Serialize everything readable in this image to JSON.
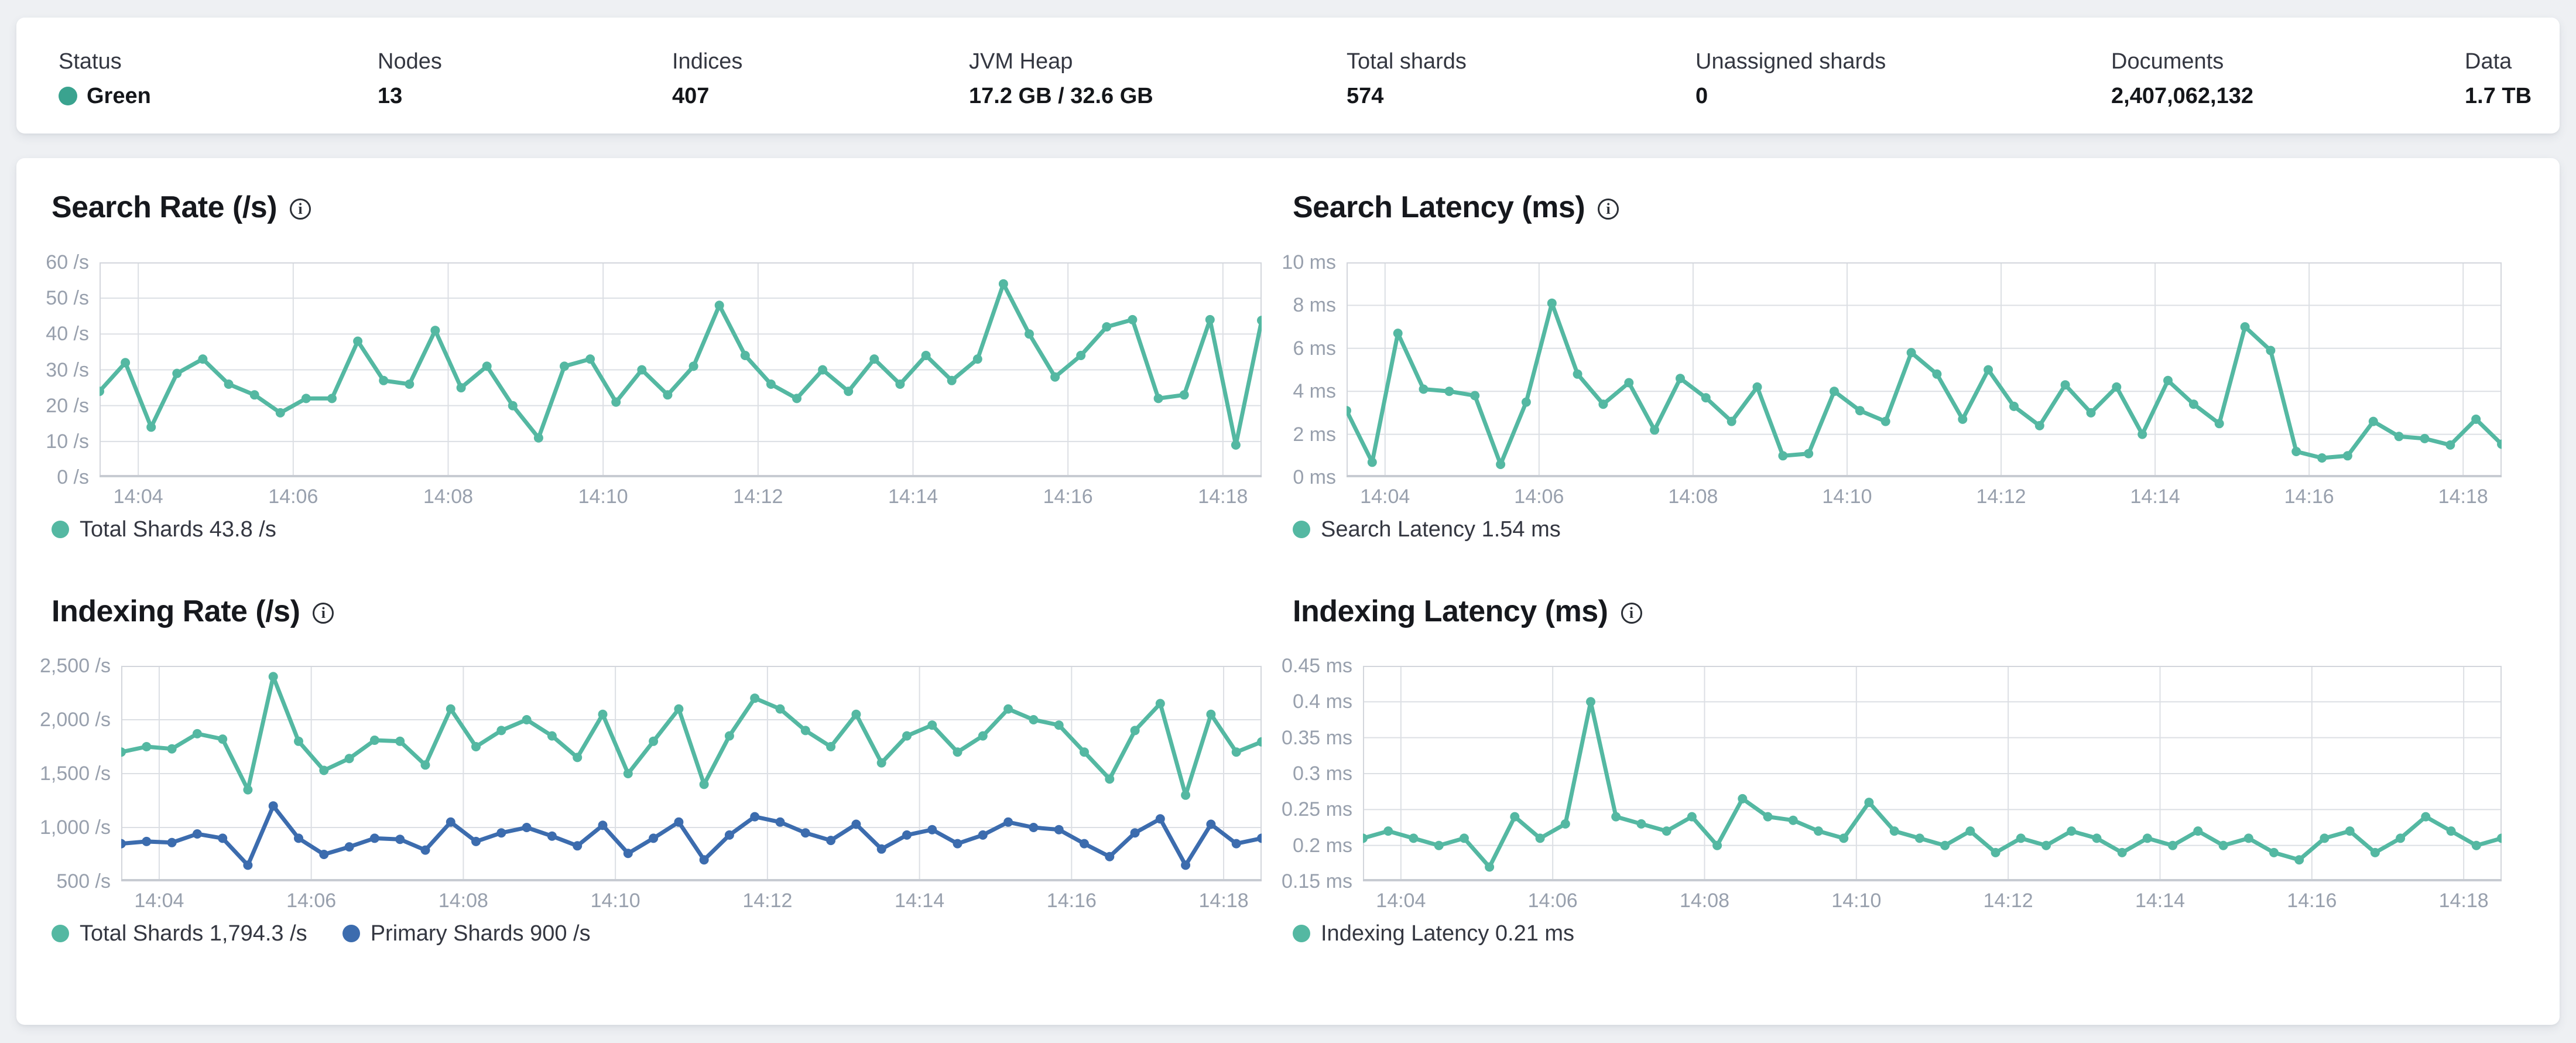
{
  "colors": {
    "status_green": "#3aa38f",
    "series_teal": "#54b8a2",
    "series_blue": "#3c6cae",
    "grid": "#dcdfe4",
    "plot_border": "#d3d6dc",
    "axis_line": "#c7cbd2"
  },
  "status_bar": {
    "stats": [
      {
        "label": "Status",
        "value": "Green",
        "dot": "#3aa38f"
      },
      {
        "label": "Nodes",
        "value": "13"
      },
      {
        "label": "Indices",
        "value": "407"
      },
      {
        "label": "JVM Heap",
        "value": "17.2 GB / 32.6 GB"
      },
      {
        "label": "Total shards",
        "value": "574"
      },
      {
        "label": "Unassigned shards",
        "value": "0"
      },
      {
        "label": "Documents",
        "value": "2,407,062,132"
      },
      {
        "label": "Data",
        "value": "1.7 TB"
      }
    ]
  },
  "chart_data": [
    {
      "id": "search-rate",
      "type": "line",
      "title": "Search Rate (/s)",
      "ylim": [
        0,
        60
      ],
      "y_ticks": [
        {
          "v": 60,
          "label": "60 /s"
        },
        {
          "v": 50,
          "label": "50 /s"
        },
        {
          "v": 40,
          "label": "40 /s"
        },
        {
          "v": 30,
          "label": "30 /s"
        },
        {
          "v": 20,
          "label": "20 /s"
        },
        {
          "v": 10,
          "label": "10 /s"
        },
        {
          "v": 0,
          "label": "0 /s"
        }
      ],
      "x_ticks": [
        "14:04",
        "14:06",
        "14:08",
        "14:10",
        "14:12",
        "14:14",
        "14:16",
        "14:18"
      ],
      "series": [
        {
          "name": "Total Shards",
          "color": "#54b8a2",
          "values": [
            24,
            32,
            14,
            29,
            33,
            26,
            23,
            18,
            22,
            22,
            38,
            27,
            26,
            41,
            25,
            31,
            20,
            11,
            31,
            33,
            21,
            30,
            23,
            31,
            48,
            34,
            26,
            22,
            30,
            24,
            33,
            26,
            34,
            27,
            33,
            54,
            40,
            28,
            34,
            42,
            44,
            22,
            23,
            44,
            9,
            43.8
          ]
        }
      ],
      "legend": [
        {
          "label": "Total Shards 43.8 /s",
          "color": "#54b8a2"
        }
      ]
    },
    {
      "id": "search-latency",
      "type": "line",
      "title": "Search Latency (ms)",
      "ylim": [
        0,
        10
      ],
      "y_ticks": [
        {
          "v": 10,
          "label": "10 ms"
        },
        {
          "v": 8,
          "label": "8 ms"
        },
        {
          "v": 6,
          "label": "6 ms"
        },
        {
          "v": 4,
          "label": "4 ms"
        },
        {
          "v": 2,
          "label": "2 ms"
        },
        {
          "v": 0,
          "label": "0 ms"
        }
      ],
      "x_ticks": [
        "14:04",
        "14:06",
        "14:08",
        "14:10",
        "14:12",
        "14:14",
        "14:16",
        "14:18"
      ],
      "series": [
        {
          "name": "Search Latency",
          "color": "#54b8a2",
          "values": [
            3.1,
            0.7,
            6.7,
            4.1,
            4.0,
            3.8,
            0.6,
            3.5,
            8.1,
            4.8,
            3.4,
            4.4,
            2.2,
            4.6,
            3.7,
            2.6,
            4.2,
            1.0,
            1.1,
            4.0,
            3.1,
            2.6,
            5.8,
            4.8,
            2.7,
            5.0,
            3.3,
            2.4,
            4.3,
            3.0,
            4.2,
            2.0,
            4.5,
            3.4,
            2.5,
            7.0,
            5.9,
            1.2,
            0.9,
            1.0,
            2.6,
            1.9,
            1.8,
            1.5,
            2.7,
            1.54
          ]
        }
      ],
      "legend": [
        {
          "label": "Search Latency 1.54 ms",
          "color": "#54b8a2"
        }
      ]
    },
    {
      "id": "indexing-rate",
      "type": "line",
      "title": "Indexing Rate (/s)",
      "ylim": [
        500,
        2500
      ],
      "y_ticks": [
        {
          "v": 2500,
          "label": "2,500 /s"
        },
        {
          "v": 2000,
          "label": "2,000 /s"
        },
        {
          "v": 1500,
          "label": "1,500 /s"
        },
        {
          "v": 1000,
          "label": "1,000 /s"
        },
        {
          "v": 500,
          "label": "500 /s"
        }
      ],
      "x_ticks": [
        "14:04",
        "14:06",
        "14:08",
        "14:10",
        "14:12",
        "14:14",
        "14:16",
        "14:18"
      ],
      "series": [
        {
          "name": "Total Shards",
          "color": "#54b8a2",
          "values": [
            1700,
            1750,
            1730,
            1870,
            1820,
            1350,
            2400,
            1800,
            1530,
            1640,
            1810,
            1800,
            1580,
            2100,
            1750,
            1900,
            2000,
            1850,
            1650,
            2050,
            1500,
            1800,
            2100,
            1400,
            1850,
            2200,
            2100,
            1900,
            1750,
            2050,
            1600,
            1850,
            1950,
            1700,
            1850,
            2100,
            2000,
            1950,
            1700,
            1450,
            1900,
            2150,
            1300,
            2050,
            1700,
            1794.3
          ]
        },
        {
          "name": "Primary Shards",
          "color": "#3c6cae",
          "values": [
            850,
            870,
            860,
            940,
            900,
            650,
            1200,
            900,
            750,
            820,
            900,
            890,
            790,
            1050,
            870,
            950,
            1000,
            920,
            830,
            1020,
            760,
            900,
            1050,
            700,
            930,
            1100,
            1050,
            950,
            880,
            1030,
            800,
            930,
            980,
            850,
            930,
            1050,
            1000,
            980,
            850,
            730,
            950,
            1080,
            650,
            1030,
            850,
            900
          ]
        }
      ],
      "legend": [
        {
          "label": "Total Shards 1,794.3 /s",
          "color": "#54b8a2"
        },
        {
          "label": "Primary Shards 900 /s",
          "color": "#3c6cae"
        }
      ]
    },
    {
      "id": "indexing-latency",
      "type": "line",
      "title": "Indexing Latency (ms)",
      "ylim": [
        0.15,
        0.45
      ],
      "y_ticks": [
        {
          "v": 0.45,
          "label": "0.45 ms"
        },
        {
          "v": 0.4,
          "label": "0.4 ms"
        },
        {
          "v": 0.35,
          "label": "0.35 ms"
        },
        {
          "v": 0.3,
          "label": "0.3 ms"
        },
        {
          "v": 0.25,
          "label": "0.25 ms"
        },
        {
          "v": 0.2,
          "label": "0.2 ms"
        },
        {
          "v": 0.15,
          "label": "0.15 ms"
        }
      ],
      "x_ticks": [
        "14:04",
        "14:06",
        "14:08",
        "14:10",
        "14:12",
        "14:14",
        "14:16",
        "14:18"
      ],
      "series": [
        {
          "name": "Indexing Latency",
          "color": "#54b8a2",
          "values": [
            0.21,
            0.22,
            0.21,
            0.2,
            0.21,
            0.17,
            0.24,
            0.21,
            0.23,
            0.4,
            0.24,
            0.23,
            0.22,
            0.24,
            0.2,
            0.265,
            0.24,
            0.235,
            0.22,
            0.21,
            0.26,
            0.22,
            0.21,
            0.2,
            0.22,
            0.19,
            0.21,
            0.2,
            0.22,
            0.21,
            0.19,
            0.21,
            0.2,
            0.22,
            0.2,
            0.21,
            0.19,
            0.18,
            0.21,
            0.22,
            0.19,
            0.21,
            0.24,
            0.22,
            0.2,
            0.21
          ]
        }
      ],
      "legend": [
        {
          "label": "Indexing Latency 0.21 ms",
          "color": "#54b8a2"
        }
      ]
    }
  ]
}
